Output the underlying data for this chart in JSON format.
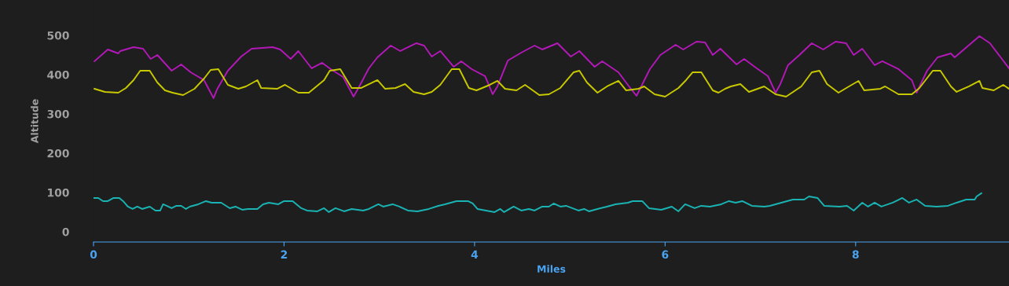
{
  "chart_data": {
    "type": "line",
    "xlabel": "Miles",
    "ylabel": "Altitude",
    "xlim": [
      0,
      9.61
    ],
    "ylim": [
      -26,
      590
    ],
    "xticks": [
      0,
      2,
      4,
      6,
      8
    ],
    "yticks": [
      0,
      100,
      200,
      300,
      400,
      500
    ],
    "grid": false,
    "legend": false,
    "marker": "none",
    "line_style": "solid",
    "series": [
      {
        "color": "#b318b8",
        "x": [
          0.01,
          0.15,
          0.26,
          0.28,
          0.42,
          0.52,
          0.6,
          0.67,
          0.82,
          0.92,
          1.02,
          1.16,
          1.26,
          1.3,
          1.41,
          1.55,
          1.66,
          1.88,
          1.96,
          2.07,
          2.15,
          2.29,
          2.4,
          2.49,
          2.62,
          2.73,
          2.79,
          2.89,
          2.98,
          3.12,
          3.22,
          3.39,
          3.47,
          3.55,
          3.64,
          3.78,
          3.86,
          3.97,
          4.11,
          4.19,
          4.24,
          4.35,
          4.49,
          4.63,
          4.71,
          4.87,
          5.01,
          5.1,
          5.26,
          5.34,
          5.51,
          5.64,
          5.7,
          5.84,
          5.95,
          6.11,
          6.19,
          6.33,
          6.42,
          6.5,
          6.58,
          6.75,
          6.83,
          6.94,
          7.08,
          7.16,
          7.21,
          7.29,
          7.41,
          7.54,
          7.66,
          7.79,
          7.9,
          7.98,
          8.07,
          8.2,
          8.28,
          8.45,
          8.59,
          8.64,
          8.75,
          8.86,
          9.0,
          9.04,
          9.3,
          9.41,
          9.61
        ],
        "values": [
          434,
          464,
          454,
          460,
          470,
          466,
          440,
          450,
          410,
          426,
          406,
          386,
          340,
          364,
          410,
          446,
          466,
          470,
          464,
          440,
          460,
          416,
          430,
          414,
          394,
          344,
          370,
          416,
          444,
          474,
          460,
          480,
          474,
          446,
          460,
          420,
          434,
          414,
          396,
          350,
          370,
          436,
          456,
          474,
          464,
          480,
          446,
          460,
          420,
          434,
          406,
          364,
          346,
          414,
          450,
          476,
          464,
          484,
          482,
          450,
          466,
          426,
          440,
          420,
          396,
          354,
          376,
          424,
          450,
          480,
          464,
          484,
          480,
          450,
          466,
          424,
          434,
          414,
          386,
          354,
          410,
          444,
          454,
          444,
          498,
          480,
          416
        ]
      },
      {
        "color": "#c8c800",
        "x": [
          0.01,
          0.12,
          0.26,
          0.34,
          0.42,
          0.49,
          0.59,
          0.67,
          0.75,
          0.83,
          0.94,
          1.06,
          1.16,
          1.23,
          1.31,
          1.41,
          1.52,
          1.6,
          1.72,
          1.76,
          1.93,
          2.01,
          2.15,
          2.26,
          2.42,
          2.48,
          2.59,
          2.71,
          2.81,
          2.98,
          3.06,
          3.17,
          3.27,
          3.36,
          3.47,
          3.55,
          3.64,
          3.76,
          3.84,
          3.94,
          4.02,
          4.16,
          4.24,
          4.32,
          4.44,
          4.53,
          4.68,
          4.78,
          4.9,
          5.04,
          5.1,
          5.18,
          5.29,
          5.39,
          5.51,
          5.59,
          5.72,
          5.78,
          5.89,
          6.0,
          6.14,
          6.22,
          6.29,
          6.38,
          6.5,
          6.56,
          6.63,
          6.69,
          6.79,
          6.88,
          7.04,
          7.16,
          7.27,
          7.43,
          7.54,
          7.62,
          7.7,
          7.82,
          7.93,
          8.03,
          8.09,
          8.26,
          8.31,
          8.45,
          8.59,
          8.67,
          8.81,
          8.89,
          9.0,
          9.06,
          9.19,
          9.3,
          9.33,
          9.45,
          9.55,
          9.61
        ],
        "values": [
          364,
          356,
          354,
          366,
          386,
          410,
          410,
          380,
          360,
          354,
          348,
          364,
          390,
          412,
          414,
          374,
          364,
          370,
          386,
          366,
          364,
          374,
          354,
          354,
          386,
          410,
          414,
          366,
          366,
          386,
          364,
          366,
          376,
          356,
          350,
          356,
          374,
          414,
          414,
          366,
          360,
          374,
          384,
          364,
          360,
          374,
          348,
          350,
          366,
          406,
          410,
          380,
          354,
          370,
          384,
          360,
          364,
          370,
          350,
          344,
          366,
          386,
          406,
          406,
          360,
          354,
          364,
          370,
          376,
          356,
          370,
          350,
          344,
          370,
          406,
          410,
          376,
          354,
          370,
          384,
          360,
          364,
          370,
          350,
          350,
          366,
          410,
          410,
          370,
          356,
          370,
          384,
          366,
          360,
          374,
          364
        ]
      },
      {
        "color": "#1ab3b3",
        "x": [
          0.0,
          0.05,
          0.1,
          0.15,
          0.21,
          0.27,
          0.31,
          0.36,
          0.41,
          0.46,
          0.51,
          0.59,
          0.65,
          0.7,
          0.73,
          0.82,
          0.87,
          0.92,
          0.97,
          1.01,
          1.1,
          1.18,
          1.24,
          1.34,
          1.43,
          1.49,
          1.56,
          1.62,
          1.72,
          1.78,
          1.84,
          1.94,
          2.0,
          2.09,
          2.18,
          2.24,
          2.35,
          2.42,
          2.47,
          2.54,
          2.63,
          2.71,
          2.83,
          2.89,
          2.99,
          3.04,
          3.14,
          3.21,
          3.3,
          3.4,
          3.52,
          3.62,
          3.69,
          3.81,
          3.93,
          3.98,
          4.03,
          4.12,
          4.21,
          4.27,
          4.31,
          4.41,
          4.49,
          4.57,
          4.63,
          4.71,
          4.78,
          4.83,
          4.9,
          4.96,
          5.09,
          5.15,
          5.2,
          5.29,
          5.39,
          5.48,
          5.61,
          5.66,
          5.76,
          5.83,
          5.96,
          6.07,
          6.14,
          6.21,
          6.31,
          6.38,
          6.47,
          6.59,
          6.67,
          6.74,
          6.81,
          6.91,
          7.04,
          7.1,
          7.22,
          7.34,
          7.46,
          7.51,
          7.6,
          7.67,
          7.83,
          7.91,
          7.98,
          8.07,
          8.13,
          8.2,
          8.27,
          8.39,
          8.49,
          8.56,
          8.64,
          8.73,
          8.85,
          8.97,
          9.06,
          9.16,
          9.25,
          9.27,
          9.32
        ],
        "values": [
          86,
          86,
          78,
          78,
          86,
          86,
          78,
          64,
          58,
          64,
          58,
          64,
          54,
          54,
          70,
          60,
          66,
          66,
          58,
          64,
          70,
          78,
          74,
          74,
          60,
          64,
          56,
          58,
          58,
          70,
          74,
          70,
          78,
          78,
          60,
          54,
          52,
          60,
          50,
          60,
          52,
          58,
          54,
          58,
          70,
          64,
          70,
          64,
          54,
          52,
          58,
          66,
          70,
          78,
          78,
          72,
          58,
          54,
          50,
          58,
          50,
          64,
          54,
          58,
          54,
          64,
          64,
          72,
          64,
          66,
          54,
          58,
          52,
          58,
          64,
          70,
          74,
          78,
          78,
          60,
          56,
          64,
          52,
          70,
          60,
          66,
          64,
          70,
          78,
          74,
          78,
          66,
          64,
          66,
          74,
          82,
          82,
          90,
          86,
          66,
          64,
          66,
          54,
          74,
          64,
          74,
          64,
          74,
          86,
          74,
          82,
          66,
          64,
          66,
          74,
          82,
          82,
          90,
          98
        ]
      }
    ]
  }
}
